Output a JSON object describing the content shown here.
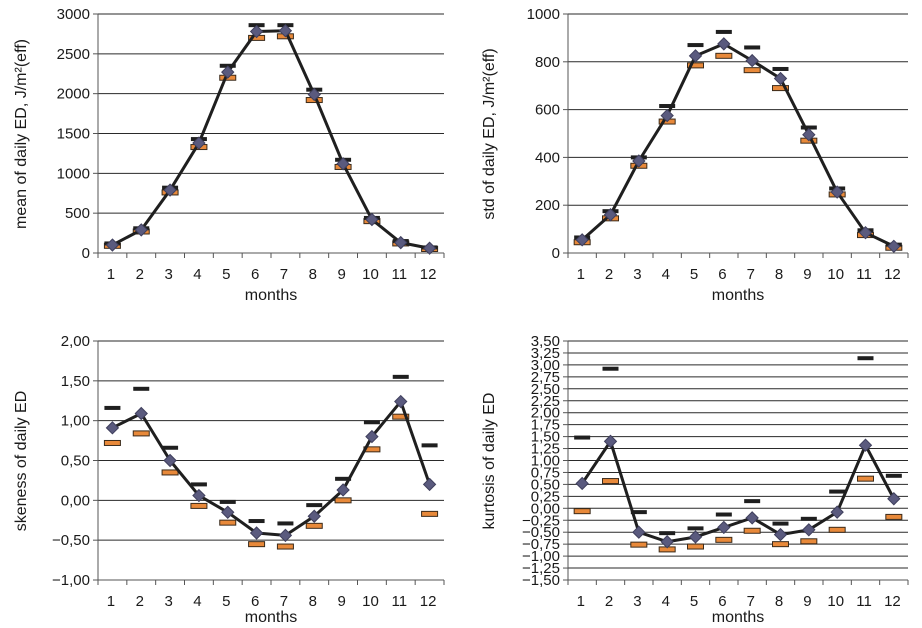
{
  "chart_data": [
    {
      "type": "line",
      "xlabel": "months",
      "ylabel": "mean of daily ED, J/m²(eff)",
      "ylim": [
        0,
        3000
      ],
      "ystep": 500,
      "ytick_labels": [
        "0",
        "500",
        "1000",
        "1500",
        "2000",
        "2500",
        "3000"
      ],
      "categories": [
        "1",
        "2",
        "3",
        "4",
        "5",
        "6",
        "7",
        "8",
        "9",
        "10",
        "11",
        "12"
      ],
      "grid": true,
      "legend": "none",
      "series": [
        {
          "kind": "line-diamond",
          "color": "#1f1f1f",
          "marker_color": "#5a5a7e",
          "values": [
            100,
            290,
            790,
            1380,
            2270,
            2780,
            2790,
            1990,
            1120,
            420,
            130,
            60
          ]
        },
        {
          "kind": "upper-dash",
          "color": "#1f1f1f",
          "values": [
            120,
            310,
            820,
            1430,
            2350,
            2860,
            2860,
            2050,
            1170,
            440,
            150,
            70
          ]
        },
        {
          "kind": "lower-bar",
          "color": "#e8893a",
          "values": [
            90,
            270,
            760,
            1330,
            2200,
            2700,
            2720,
            1920,
            1080,
            400,
            120,
            50
          ]
        }
      ]
    },
    {
      "type": "line",
      "xlabel": "months",
      "ylabel": "std of daily ED, J/m²(eff)",
      "ylim": [
        0,
        1000
      ],
      "ystep": 200,
      "ytick_labels": [
        "0",
        "200",
        "400",
        "600",
        "800",
        "1000"
      ],
      "categories": [
        "1",
        "2",
        "3",
        "4",
        "5",
        "6",
        "7",
        "8",
        "9",
        "10",
        "11",
        "12"
      ],
      "grid": true,
      "legend": "none",
      "series": [
        {
          "kind": "line-diamond",
          "color": "#1f1f1f",
          "marker_color": "#5a5a7e",
          "values": [
            55,
            160,
            385,
            575,
            825,
            875,
            805,
            730,
            495,
            255,
            85,
            28
          ]
        },
        {
          "kind": "upper-dash",
          "color": "#1f1f1f",
          "values": [
            65,
            175,
            400,
            615,
            870,
            925,
            860,
            770,
            525,
            270,
            95,
            35
          ]
        },
        {
          "kind": "lower-bar",
          "color": "#e8893a",
          "values": [
            45,
            145,
            365,
            550,
            785,
            825,
            765,
            690,
            470,
            245,
            75,
            22
          ]
        }
      ]
    },
    {
      "type": "line",
      "xlabel": "months",
      "ylabel": "skeness of daily ED",
      "ylim": [
        -1,
        2
      ],
      "ystep": 0.5,
      "ytick_labels": [
        "−1,00",
        "−0,50",
        "0,00",
        "0,50",
        "1,00",
        "1,50",
        "2,00"
      ],
      "categories": [
        "1",
        "2",
        "3",
        "4",
        "5",
        "6",
        "7",
        "8",
        "9",
        "10",
        "11",
        "12"
      ],
      "grid": true,
      "legend": "none",
      "series": [
        {
          "kind": "line-diamond",
          "color": "#1f1f1f",
          "marker_color": "#5a5a7e",
          "values": [
            0.91,
            1.09,
            0.5,
            0.06,
            -0.15,
            -0.41,
            -0.44,
            -0.2,
            0.13,
            0.8,
            1.24,
            0.2
          ]
        },
        {
          "kind": "upper-dash",
          "color": "#1f1f1f",
          "values": [
            1.16,
            1.4,
            0.66,
            0.2,
            -0.02,
            -0.26,
            -0.29,
            -0.06,
            0.27,
            0.98,
            1.55,
            0.69
          ]
        },
        {
          "kind": "lower-bar",
          "color": "#e8893a",
          "values": [
            0.72,
            0.84,
            0.35,
            -0.07,
            -0.28,
            -0.55,
            -0.58,
            -0.32,
            0.0,
            0.64,
            1.05,
            -0.17
          ]
        }
      ]
    },
    {
      "type": "line",
      "xlabel": "months",
      "ylabel": "kurtosis of daily ED",
      "ylim": [
        -1.5,
        3.5
      ],
      "ystep": 0.25,
      "ytick_labels": [
        "−1,50",
        "−1,25",
        "−1,00",
        "−0,75",
        "−0,50",
        "−0,25",
        "0,00",
        "0,25",
        "0,50",
        "0,75",
        "1,00",
        "1,25",
        "1,50",
        "1,75",
        "2,00",
        "2,25",
        "2,50",
        "2,75",
        "3,00",
        "3,25",
        "3,50"
      ],
      "categories": [
        "1",
        "2",
        "3",
        "4",
        "5",
        "6",
        "7",
        "8",
        "9",
        "10",
        "11",
        "12"
      ],
      "grid": true,
      "legend": "none",
      "series": [
        {
          "kind": "line-diamond",
          "color": "#1f1f1f",
          "marker_color": "#5a5a7e",
          "values": [
            0.52,
            1.4,
            -0.5,
            -0.7,
            -0.6,
            -0.4,
            -0.2,
            -0.55,
            -0.45,
            -0.08,
            1.32,
            0.2
          ]
        },
        {
          "kind": "upper-dash",
          "color": "#1f1f1f",
          "values": [
            1.48,
            2.92,
            -0.08,
            -0.52,
            -0.42,
            -0.13,
            0.15,
            -0.32,
            -0.22,
            0.35,
            3.14,
            0.68
          ]
        },
        {
          "kind": "lower-bar",
          "color": "#e8893a",
          "values": [
            -0.06,
            0.57,
            -0.76,
            -0.86,
            -0.8,
            -0.66,
            -0.47,
            -0.75,
            -0.69,
            -0.45,
            0.62,
            -0.18
          ]
        }
      ]
    }
  ]
}
